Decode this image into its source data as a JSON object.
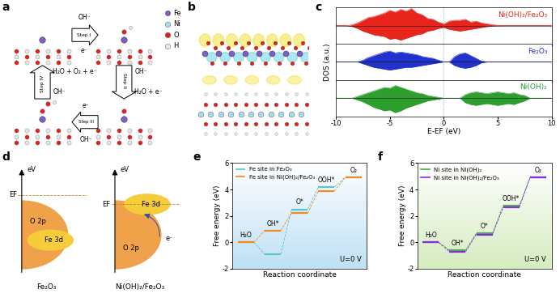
{
  "panels": [
    {
      "panel": "a",
      "legend": [
        {
          "name": "Fe",
          "color": "#7b5fc4"
        },
        {
          "name": "Ni",
          "color": "#a6dbe8"
        },
        {
          "name": "O",
          "color": "#e0201b"
        },
        {
          "name": "H",
          "color": "#e6e6e6"
        }
      ],
      "steps": [
        {
          "name": "Step I",
          "reactant": "OH⁻",
          "product": "e⁻"
        },
        {
          "name": "Step II",
          "reactant": "OH⁻",
          "product": "H₂O + e⁻"
        },
        {
          "name": "Step III",
          "reactant": "OH⁻",
          "product": "e⁻"
        },
        {
          "name": "Step IV",
          "reactant": "OH⁻",
          "product": "H₂O + O₂ + e⁻"
        }
      ]
    },
    {
      "panel": "b"
    },
    {
      "panel": "d",
      "axis_label": "eV",
      "fermi": "EF",
      "band_o": "O 2p",
      "band_fe": "Fe 3d",
      "electron": "e⁻",
      "materials": [
        "Fe₂O₃",
        "Ni(OH)₂/Fe₂O₃"
      ]
    }
  ],
  "chart_data": [
    {
      "type": "line",
      "panel": "c",
      "xlabel": "E-EF (eV)",
      "ylabel": "DOS (a.u.)",
      "x": [
        -10,
        -9.5,
        -9,
        -8.5,
        -8,
        -7.5,
        -7,
        -6.5,
        -6,
        -5.5,
        -5,
        -4.5,
        -4,
        -3.5,
        -3,
        -2.5,
        -2,
        -1.5,
        -1,
        -0.5,
        0,
        0.5,
        1,
        1.5,
        2,
        2.5,
        3,
        3.5,
        4,
        4.5,
        5,
        5.5,
        6,
        6.5,
        7,
        7.5,
        8,
        8.5,
        9,
        9.5,
        10
      ],
      "xlim": [
        -10,
        10
      ],
      "xticks": [
        -10,
        -5,
        0,
        5,
        10
      ],
      "ylim": [
        -1,
        1
      ],
      "tick_labels": "x",
      "fermi_level": 0,
      "series": [
        {
          "name": "Ni(OH)₂/Fe₂O₃",
          "color": "#e8251c",
          "values": [
            0,
            0,
            0,
            0.05,
            0.15,
            0.3,
            0.45,
            0.5,
            0.6,
            0.7,
            0.85,
            0.75,
            0.9,
            0.8,
            0.95,
            0.7,
            0.6,
            0.4,
            0.35,
            0.2,
            0.1,
            0.25,
            0.3,
            0.3,
            0.35,
            0.2,
            0.25,
            0.15,
            0.1,
            0.05,
            0.02,
            0,
            0,
            0,
            0,
            0,
            0,
            0,
            0,
            0,
            0
          ],
          "values_down": [
            0,
            0,
            0,
            -0.05,
            -0.15,
            -0.3,
            -0.4,
            -0.5,
            -0.55,
            -0.6,
            -0.75,
            -0.7,
            -0.8,
            -0.7,
            -0.6,
            -0.5,
            -0.45,
            -0.3,
            -0.25,
            -0.15,
            -0.1,
            -0.2,
            -0.25,
            -0.3,
            -0.25,
            -0.2,
            -0.15,
            -0.1,
            -0.05,
            -0.02,
            0,
            0,
            0,
            0,
            0,
            0,
            0,
            0,
            0,
            0,
            0
          ]
        },
        {
          "name": "Fe₂O₃",
          "color": "#2233cc",
          "values": [
            0,
            0,
            0,
            0,
            0,
            0.1,
            0.25,
            0.35,
            0.45,
            0.55,
            0.6,
            0.5,
            0.55,
            0.5,
            0.45,
            0.4,
            0.3,
            0.25,
            0.2,
            0.1,
            0,
            0,
            0.3,
            0.45,
            0.5,
            0.35,
            0.2,
            0.05,
            0,
            0,
            0,
            0,
            0,
            0,
            0,
            0,
            0,
            0,
            0,
            0,
            0
          ],
          "values_down": [
            0,
            0,
            0,
            0,
            0,
            -0.1,
            -0.2,
            -0.3,
            -0.35,
            -0.4,
            -0.45,
            -0.4,
            -0.35,
            -0.3,
            -0.3,
            -0.25,
            -0.2,
            -0.15,
            -0.1,
            -0.05,
            0,
            0,
            -0.2,
            -0.3,
            -0.35,
            -0.3,
            -0.2,
            -0.05,
            0,
            0,
            0,
            0,
            0,
            0,
            0,
            0,
            0,
            0,
            0,
            0,
            0
          ]
        },
        {
          "name": "Ni(OH)₂",
          "color": "#2e9e2e",
          "values": [
            0,
            0,
            0,
            0,
            0.1,
            0.2,
            0.3,
            0.4,
            0.5,
            0.6,
            0.55,
            0.7,
            0.6,
            0.5,
            0.4,
            0.3,
            0.25,
            0.15,
            0.1,
            0.05,
            0,
            0,
            0,
            0,
            0.2,
            0.3,
            0.35,
            0.3,
            0.25,
            0.3,
            0.35,
            0.3,
            0.25,
            0.3,
            0.2,
            0.15,
            0,
            0,
            0,
            0,
            0
          ],
          "values_down": [
            0,
            0,
            0,
            0,
            -0.1,
            -0.2,
            -0.35,
            -0.5,
            -0.6,
            -0.7,
            -0.65,
            -0.8,
            -0.7,
            -0.55,
            -0.45,
            -0.35,
            -0.25,
            -0.15,
            -0.1,
            -0.05,
            0,
            0,
            0,
            0,
            -0.25,
            -0.35,
            -0.4,
            -0.35,
            -0.3,
            -0.35,
            -0.4,
            -0.35,
            -0.3,
            -0.35,
            -0.25,
            -0.15,
            0,
            0,
            0,
            0,
            0
          ]
        }
      ]
    },
    {
      "type": "line",
      "panel": "e",
      "xlabel": "Reaction coordinate",
      "ylabel": "Free energy (eV)",
      "categories": [
        "H₂O",
        "OH*",
        "O*",
        "OOH*",
        "O₂"
      ],
      "ylim": [
        -2,
        6
      ],
      "yticks": [
        -2,
        0,
        2,
        4,
        6
      ],
      "tick_labels": "y",
      "legend": "upper left",
      "annotation": "U=0 V",
      "series": [
        {
          "name": "Fe site in Fe₂O₃",
          "color": "#5bc4d0",
          "values": [
            0,
            -0.9,
            2.5,
            4.2,
            4.92
          ]
        },
        {
          "name": "Fe site in Ni(OH)₂/Fe₂O₃",
          "color": "#f08a24",
          "values": [
            0,
            0.9,
            2.2,
            3.9,
            4.92
          ]
        }
      ]
    },
    {
      "type": "line",
      "panel": "f",
      "xlabel": "Reaction coordinate",
      "ylabel": "Free energy (eV)",
      "categories": [
        "H₂O",
        "OH*",
        "O*",
        "OOH*",
        "O₂"
      ],
      "ylim": [
        -2,
        6
      ],
      "yticks": [
        -2,
        0,
        2,
        4,
        6
      ],
      "tick_labels": "y",
      "legend": "upper left",
      "annotation": "U=0 V",
      "series": [
        {
          "name": "Ni site in Ni(OH)₂",
          "color": "#4caf50",
          "values": [
            0,
            -0.6,
            0.7,
            2.8,
            4.92
          ]
        },
        {
          "name": "Ni site in Ni(OH)₂/Fe₂O₃",
          "color": "#8a2be2",
          "values": [
            0,
            -0.7,
            0.6,
            2.65,
            4.92
          ]
        }
      ]
    }
  ]
}
